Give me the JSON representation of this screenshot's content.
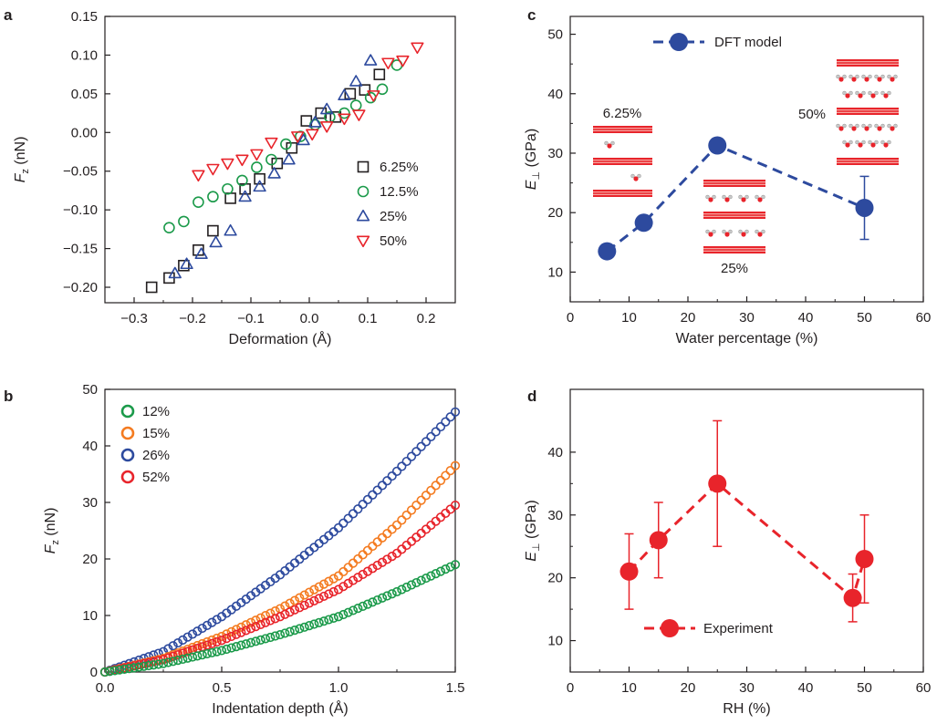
{
  "panels": {
    "a": "a",
    "b": "b",
    "c": "c",
    "d": "d"
  },
  "colors": {
    "black": "#231f20",
    "green": "#1b9a4a",
    "blue": "#2d4a9e",
    "red": "#e8242b",
    "orange": "#f47b20",
    "layer": "#e8242b",
    "layer_light": "#f6a5a0"
  },
  "chart_data": [
    {
      "id": "a",
      "type": "scatter",
      "xlabel": "Deformation (Å)",
      "ylabel": "F_z (nN)",
      "ylabel_main": "F",
      "ylabel_sub": "z",
      "ylabel_rest": " (nN)",
      "xlim": [
        -0.35,
        0.25
      ],
      "ylim": [
        -0.22,
        0.15
      ],
      "xticks": [
        -0.3,
        -0.2,
        -0.1,
        0.0,
        0.1,
        0.2
      ],
      "xtick_labels": [
        "−0.3",
        "−0.2",
        "−0.1",
        "0.0",
        "0.1",
        "0.2"
      ],
      "yticks": [
        -0.2,
        -0.15,
        -0.1,
        -0.05,
        0.0,
        0.05,
        0.1,
        0.15
      ],
      "ytick_labels": [
        "−0.20",
        "−0.15",
        "−0.10",
        "−0.05",
        "0.00",
        "0.05",
        "0.10",
        "0.15"
      ],
      "legend_position": "right",
      "series": [
        {
          "name": "6.25%",
          "marker": "square",
          "color": "#231f20",
          "x": [
            -0.27,
            -0.24,
            -0.215,
            -0.19,
            -0.165,
            -0.135,
            -0.11,
            -0.085,
            -0.055,
            -0.03,
            -0.005,
            0.02,
            0.045,
            0.07,
            0.095,
            0.12
          ],
          "y": [
            -0.2,
            -0.188,
            -0.172,
            -0.152,
            -0.127,
            -0.085,
            -0.073,
            -0.06,
            -0.04,
            -0.02,
            0.015,
            0.025,
            0.02,
            0.05,
            0.055,
            0.075
          ]
        },
        {
          "name": "12.5%",
          "marker": "circle",
          "color": "#1b9a4a",
          "x": [
            -0.24,
            -0.215,
            -0.19,
            -0.165,
            -0.14,
            -0.115,
            -0.09,
            -0.065,
            -0.04,
            -0.015,
            0.01,
            0.035,
            0.06,
            0.08,
            0.105,
            0.125,
            0.15
          ],
          "y": [
            -0.123,
            -0.115,
            -0.09,
            -0.083,
            -0.073,
            -0.062,
            -0.045,
            -0.035,
            -0.015,
            -0.005,
            0.01,
            0.02,
            0.025,
            0.035,
            0.045,
            0.056,
            0.087
          ]
        },
        {
          "name": "25%",
          "marker": "triangle-up",
          "color": "#2d4a9e",
          "x": [
            -0.23,
            -0.21,
            -0.185,
            -0.16,
            -0.135,
            -0.11,
            -0.085,
            -0.06,
            -0.035,
            -0.01,
            0.01,
            0.03,
            0.06,
            0.08,
            0.105
          ],
          "y": [
            -0.182,
            -0.17,
            -0.157,
            -0.142,
            -0.127,
            -0.083,
            -0.07,
            -0.053,
            -0.035,
            -0.01,
            0.013,
            0.03,
            0.048,
            0.066,
            0.093
          ]
        },
        {
          "name": "50%",
          "marker": "triangle-down",
          "color": "#e8242b",
          "x": [
            -0.19,
            -0.165,
            -0.14,
            -0.115,
            -0.09,
            -0.065,
            -0.02,
            0.005,
            0.03,
            0.06,
            0.085,
            0.11,
            0.135,
            0.16,
            0.185
          ],
          "y": [
            -0.055,
            -0.047,
            -0.04,
            -0.035,
            -0.028,
            -0.013,
            -0.005,
            -0.002,
            0.008,
            0.018,
            0.023,
            0.048,
            0.09,
            0.093,
            0.11
          ]
        }
      ]
    },
    {
      "id": "b",
      "type": "scatter",
      "xlabel": "Indentation depth (Å)",
      "ylabel": "F_z (nN)",
      "ylabel_main": "F",
      "ylabel_sub": "z",
      "ylabel_rest": " (nN)",
      "xlim": [
        0,
        1.5
      ],
      "ylim": [
        0,
        50
      ],
      "xticks": [
        0.0,
        0.5,
        1.0,
        1.5
      ],
      "xtick_labels": [
        "0.0",
        "0.5",
        "1.0",
        "1.5"
      ],
      "yticks": [
        0,
        10,
        20,
        30,
        40,
        50
      ],
      "ytick_labels": [
        "0",
        "10",
        "20",
        "30",
        "40",
        "50"
      ],
      "legend_position": "top-left",
      "series": [
        {
          "name": "12%",
          "marker": "circle",
          "color": "#1b9a4a",
          "x": [
            0,
            0.25,
            0.5,
            0.75,
            1.0,
            1.25,
            1.5
          ],
          "y": [
            0,
            1.5,
            3.8,
            6.6,
            9.8,
            14.2,
            19.0
          ]
        },
        {
          "name": "15%",
          "marker": "circle",
          "color": "#f47b20",
          "x": [
            0,
            0.25,
            0.5,
            0.75,
            1.0,
            1.25,
            1.5
          ],
          "y": [
            0,
            2.4,
            6.3,
            11.2,
            17.0,
            26.0,
            36.5
          ]
        },
        {
          "name": "26%",
          "marker": "circle",
          "color": "#2d4a9e",
          "x": [
            0,
            0.25,
            0.5,
            0.75,
            1.0,
            1.25,
            1.5
          ],
          "y": [
            0,
            3.6,
            9.8,
            17.2,
            25.5,
            35.5,
            46.0
          ]
        },
        {
          "name": "52%",
          "marker": "circle",
          "color": "#e8242b",
          "x": [
            0,
            0.25,
            0.5,
            0.75,
            1.0,
            1.25,
            1.5
          ],
          "y": [
            0,
            2.2,
            5.6,
            9.8,
            14.6,
            21.0,
            29.5
          ]
        }
      ]
    },
    {
      "id": "c",
      "type": "line",
      "xlabel": "Water percentage (%)",
      "ylabel": "E_⊥ (GPa)",
      "ylabel_main": "E",
      "ylabel_sub": "⊥",
      "ylabel_rest": " (GPa)",
      "xlim": [
        0,
        60
      ],
      "ylim": [
        5,
        53
      ],
      "xticks": [
        0,
        10,
        20,
        30,
        40,
        50,
        60
      ],
      "xtick_labels": [
        "0",
        "10",
        "20",
        "30",
        "40",
        "50",
        "60"
      ],
      "yticks": [
        10,
        20,
        30,
        40,
        50
      ],
      "ytick_labels": [
        "10",
        "20",
        "30",
        "40",
        "50"
      ],
      "legend_position": "top-center",
      "series": [
        {
          "name": "DFT model",
          "marker": "circle",
          "color": "#2d4a9e",
          "x": [
            6.25,
            12.5,
            25,
            50
          ],
          "y": [
            13.5,
            18.3,
            31.3,
            20.8
          ],
          "err": [
            0,
            0,
            0,
            5.3
          ]
        }
      ],
      "annotations": [
        "6.25%",
        "25%",
        "50%"
      ]
    },
    {
      "id": "d",
      "type": "line",
      "xlabel": "RH (%)",
      "ylabel": "E_⊥ (GPa)",
      "ylabel_main": "E",
      "ylabel_sub": "⊥",
      "ylabel_rest": " (GPa)",
      "xlim": [
        0,
        60
      ],
      "ylim": [
        5,
        50
      ],
      "xticks": [
        0,
        10,
        20,
        30,
        40,
        50,
        60
      ],
      "xtick_labels": [
        "0",
        "10",
        "20",
        "30",
        "40",
        "50",
        "60"
      ],
      "yticks": [
        10,
        20,
        30,
        40
      ],
      "ytick_labels": [
        "10",
        "20",
        "30",
        "40"
      ],
      "legend_position": "bottom-left",
      "series": [
        {
          "name": "Experiment",
          "marker": "circle",
          "color": "#e8242b",
          "x": [
            10,
            15,
            25,
            48,
            50
          ],
          "y": [
            21,
            26,
            35,
            16.8,
            23
          ],
          "err": [
            6,
            6,
            10,
            3.8,
            7
          ]
        }
      ]
    }
  ]
}
